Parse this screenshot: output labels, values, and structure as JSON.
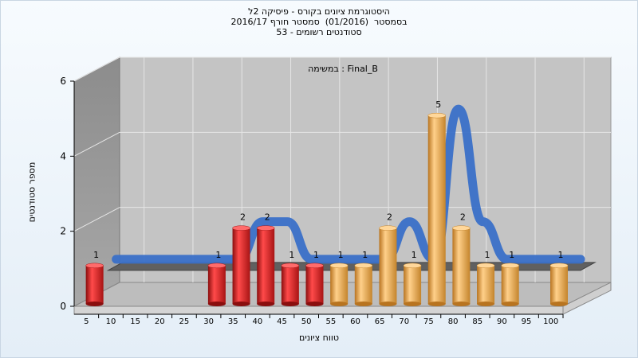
{
  "header": {
    "line1": "היסטוגרמת ציונים בקורס - פיסיקה 2ל",
    "line2": "בסמסטר  (01/2016)  סמסטר חורף 2016/17",
    "line3": "סטודנטים רשומים - 53"
  },
  "plot_label": "במשימה : Final_B",
  "chart_data": {
    "type": "bar",
    "xlabel": "טווח ציונים",
    "ylabel": "מספר סטודנטים",
    "ylim": [
      0,
      6
    ],
    "yticks": [
      0,
      2,
      4,
      6
    ],
    "categories": [
      "5",
      "10",
      "15",
      "20",
      "25",
      "30",
      "35",
      "40",
      "45",
      "50",
      "55",
      "60",
      "65",
      "70",
      "75",
      "80",
      "85",
      "90",
      "95",
      "100"
    ],
    "values": [
      1,
      0,
      0,
      0,
      0,
      1,
      2,
      2,
      1,
      1,
      1,
      1,
      2,
      1,
      5,
      2,
      1,
      1,
      0,
      1
    ],
    "red_until_index": 9,
    "colors": {
      "red": "#d92020",
      "orange": "#e8a63c",
      "curve": "#3a70c8",
      "plane": "#606060"
    }
  }
}
